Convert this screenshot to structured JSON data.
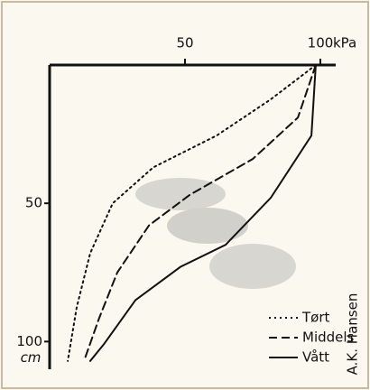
{
  "chart_data": {
    "type": "line",
    "xlabel": "kPa",
    "ylabel": "cm",
    "credit": "A.K. Hansen",
    "xlim": [
      0,
      100
    ],
    "xticks": [
      50,
      100
    ],
    "ylim": [
      0,
      110
    ],
    "yticks": [
      50,
      100
    ],
    "y_inverted": true,
    "series": [
      {
        "name": "Tørt",
        "color": "#111111",
        "style": "dotted",
        "x": [
          98.3,
          81.7,
          61.7,
          38.3,
          23.3,
          15,
          10,
          6.7
        ],
        "values": [
          0,
          12.4,
          25.5,
          37,
          50,
          68,
          87.6,
          107
        ]
      },
      {
        "name": "Middels",
        "color": "#111111",
        "style": "dashed",
        "x": [
          98.3,
          91.7,
          75,
          51.7,
          36.7,
          25,
          18.3,
          12.7
        ],
        "values": [
          0,
          19,
          34,
          47,
          58,
          75,
          91.5,
          107
        ]
      },
      {
        "name": "Vått",
        "color": "#111111",
        "style": "solid",
        "x": [
          98.3,
          96.7,
          81.7,
          65,
          48.3,
          31.7,
          20,
          15
        ],
        "values": [
          0,
          25.5,
          48,
          65,
          73,
          85,
          101,
          107
        ]
      }
    ]
  }
}
